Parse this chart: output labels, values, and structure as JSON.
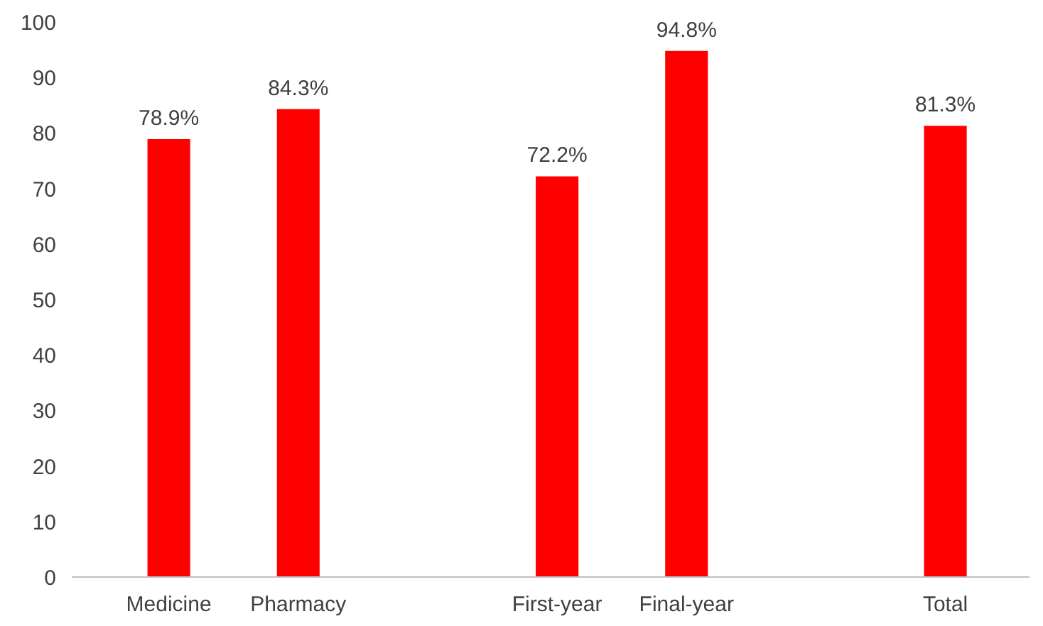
{
  "chart_data": {
    "type": "bar",
    "categories": [
      "Medicine",
      "Pharmacy",
      null,
      "First-year",
      "Final-year",
      null,
      "Total"
    ],
    "values": [
      78.9,
      84.3,
      null,
      72.2,
      94.8,
      null,
      81.3
    ],
    "value_labels": [
      "78.9%",
      "84.3%",
      null,
      "72.2%",
      "94.8%",
      null,
      "81.3%"
    ],
    "color": "#ff0000",
    "ylim": [
      0,
      100
    ],
    "yticks": [
      0,
      10,
      20,
      30,
      40,
      50,
      60,
      70,
      80,
      90,
      100
    ]
  }
}
